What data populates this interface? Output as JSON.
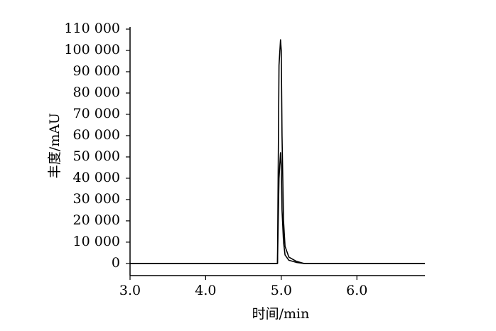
{
  "chart_data": {
    "type": "line",
    "x_label": "时间/min",
    "y_label": "丰度/mAU",
    "x": [
      3.0,
      4.9,
      4.95,
      4.97,
      4.99,
      5.0,
      5.01,
      5.03,
      5.05,
      5.1,
      5.2,
      5.3,
      6.9
    ],
    "series": [
      {
        "color": "#000000",
        "values": [
          0,
          0,
          0,
          93000,
          105000,
          100000,
          60000,
          20000,
          8000,
          3000,
          1000,
          0,
          0
        ]
      },
      {
        "color": "#000000",
        "values": [
          0,
          0,
          0,
          40000,
          52000,
          46000,
          25000,
          10000,
          4000,
          1500,
          500,
          0,
          0
        ]
      }
    ],
    "xlim": [
      3.0,
      6.9
    ],
    "xticks": [
      {
        "value": 3.0,
        "label": "3.0"
      },
      {
        "value": 4.0,
        "label": "4.0"
      },
      {
        "value": 5.0,
        "label": "5.0"
      },
      {
        "value": 6.0,
        "label": "6.0"
      }
    ],
    "ylim": [
      -5700,
      111000
    ],
    "yticks": [
      0,
      {
        "value": 10000,
        "label": "10 000"
      },
      {
        "value": 20000,
        "label": "20 000"
      },
      {
        "value": 30000,
        "label": "30 000"
      },
      {
        "value": 40000,
        "label": "40 000"
      },
      {
        "value": 50000,
        "label": "50 000"
      },
      {
        "value": 60000,
        "label": "60 000"
      },
      {
        "value": 70000,
        "label": "70 000"
      },
      {
        "value": 80000,
        "label": "80 000"
      },
      {
        "value": 90000,
        "label": "90 000"
      },
      {
        "value": 100000,
        "label": "100 000"
      },
      {
        "value": 110000,
        "label": "110 000"
      }
    ],
    "grid": false
  }
}
